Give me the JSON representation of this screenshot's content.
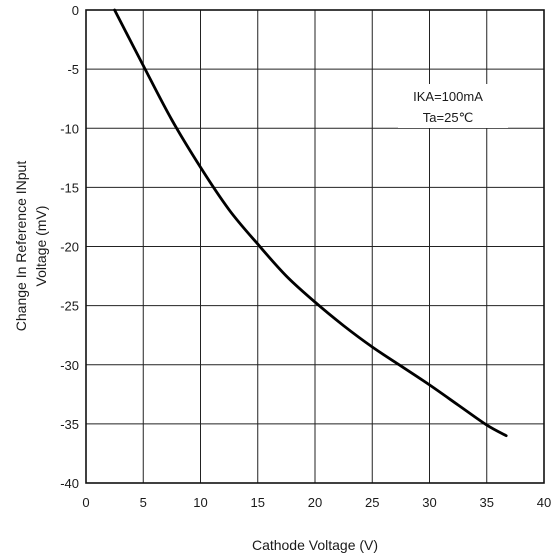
{
  "chart_data": {
    "type": "line",
    "title": "",
    "xlabel": "Cathode Voltage (V)",
    "ylabel_line1": "Change In Reference INput",
    "ylabel_line2": "Voltage  (mV)",
    "xlim": [
      0,
      40
    ],
    "ylim": [
      -40,
      0
    ],
    "xticks": [
      0,
      5,
      10,
      15,
      20,
      25,
      30,
      35,
      40
    ],
    "yticks": [
      0,
      -5,
      -10,
      -15,
      -20,
      -25,
      -30,
      -35,
      -40
    ],
    "xtick_labels": [
      "0",
      "5",
      "10",
      "15",
      "20",
      "25",
      "30",
      "35",
      "40"
    ],
    "ytick_labels": [
      "0",
      "-5",
      "-10",
      "-15",
      "-20",
      "-25",
      "-30",
      "-35",
      "-40"
    ],
    "grid": true,
    "series": [
      {
        "x": [
          2.5,
          5,
          7.5,
          10,
          12.5,
          15,
          17.5,
          20,
          22.5,
          25,
          27.5,
          30,
          32.5,
          35,
          36.7
        ],
        "y": [
          0,
          -4.7,
          -9.3,
          -13.3,
          -16.9,
          -19.8,
          -22.5,
          -24.7,
          -26.7,
          -28.5,
          -30.1,
          -31.7,
          -33.4,
          -35.1,
          -36.0
        ]
      }
    ],
    "annotations": [
      {
        "text": "IKA=100mA"
      },
      {
        "text": "Ta=25℃"
      }
    ],
    "line_color": "#000000",
    "grid_color": "#222222"
  }
}
